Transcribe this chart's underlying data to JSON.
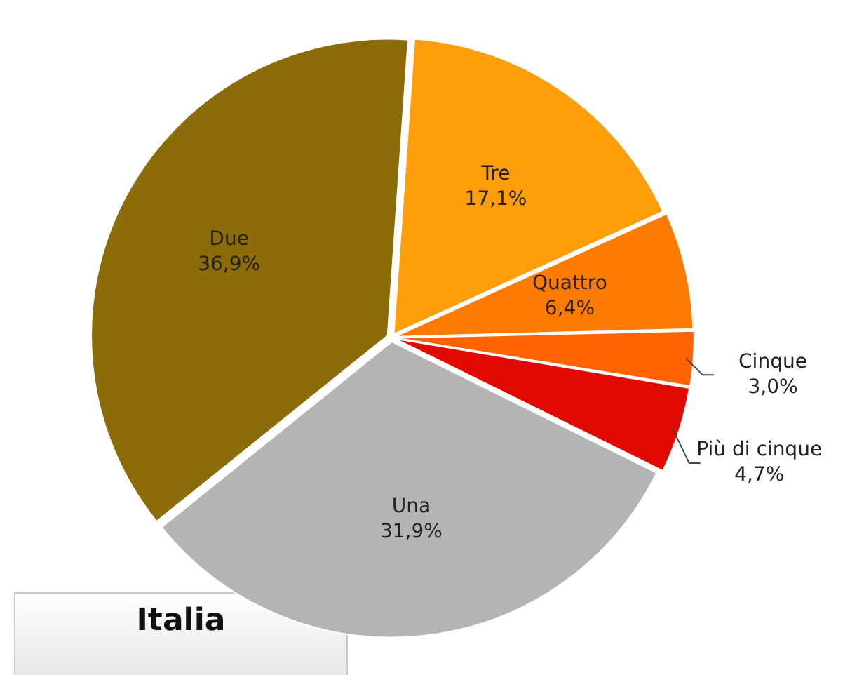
{
  "chart_data": {
    "type": "pie",
    "title": "Italia",
    "categories": [
      "Tre",
      "Quattro",
      "Cinque",
      "Più di cinque",
      "Una",
      "Due"
    ],
    "values": [
      17.1,
      6.4,
      3.0,
      4.7,
      31.9,
      36.9
    ],
    "value_labels": [
      "17,1%",
      "6,4%",
      "3,0%",
      "4,7%",
      "31,9%",
      "36,9%"
    ],
    "colors": [
      "#ff9e0b",
      "#ff7a00",
      "#ff6400",
      "#e00a00",
      "#b4b4b4",
      "#8c6c08"
    ],
    "legend": false
  }
}
